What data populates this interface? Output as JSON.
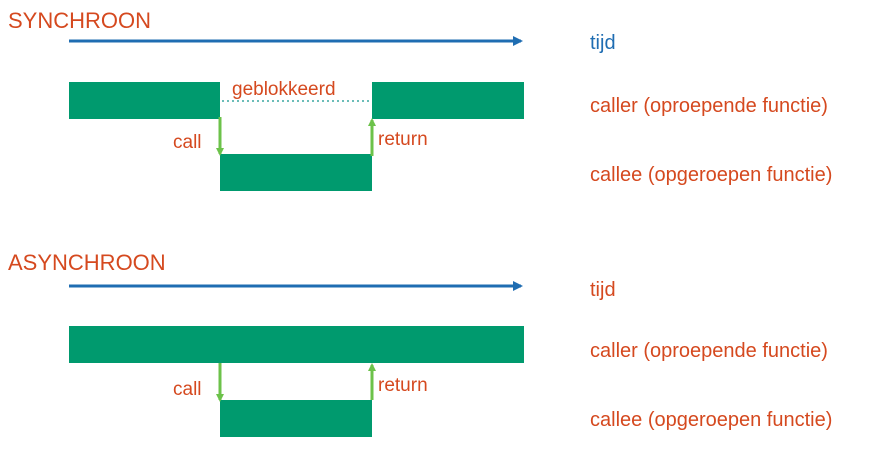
{
  "colors": {
    "bar": "#009a6e",
    "arrow_time": "#1f6db2",
    "arrow_call": "#6cc24a",
    "dotted": "#3aa7a0",
    "text_orange": "#d5491f",
    "text_blue": "#1f6db2"
  },
  "sync": {
    "heading": "SYNCHROON",
    "time_label": "tijd",
    "caller_label": "caller (oproepende functie)",
    "callee_label": "callee (opgeroepen functie)",
    "blocked_label": "geblokkeerd",
    "call_label": "call",
    "return_label": "return"
  },
  "async": {
    "heading": "ASYNCHROON",
    "time_label": "tijd",
    "caller_label": "caller (oproepende functie)",
    "callee_label": "callee (opgeroepen functie)",
    "call_label": "call",
    "return_label": "return"
  }
}
